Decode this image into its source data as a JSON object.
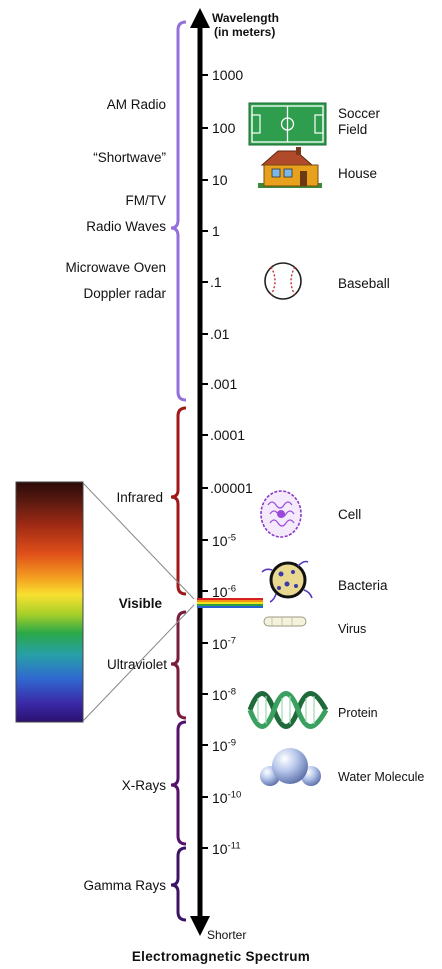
{
  "header": {
    "line1": "Wavelength",
    "line2": "(in meters)"
  },
  "footer": {
    "bottom_label": "Shorter",
    "title": "Electromagnetic Spectrum"
  },
  "regions": {
    "am_radio": "AM Radio",
    "shortwave": "“Shortwave”",
    "fm_tv": "FM/TV",
    "radio_waves": "Radio Waves",
    "microwave": "Microwave Oven",
    "doppler": "Doppler radar",
    "infrared": "Infrared",
    "visible": "Visible",
    "ultraviolet": "Ultraviolet",
    "xrays": "X-Rays",
    "gamma": "Gamma Rays"
  },
  "ticks": {
    "t1000": "1000",
    "t100": "100",
    "t10": "10",
    "t1": "1",
    "t01": ".1",
    "t001": ".01",
    "t0001": ".001",
    "t00001": ".0001",
    "t000001": ".00001",
    "e5": {
      "base": "10",
      "exp": "-5"
    },
    "e6": {
      "base": "10",
      "exp": "-6"
    },
    "e7": {
      "base": "10",
      "exp": "-7"
    },
    "e8": {
      "base": "10",
      "exp": "-8"
    },
    "e9": {
      "base": "10",
      "exp": "-9"
    },
    "e10": {
      "base": "10",
      "exp": "-10"
    },
    "e11": {
      "base": "10",
      "exp": "-11"
    }
  },
  "objects": {
    "soccer_line1": "Soccer",
    "soccer_line2": "Field",
    "house": "House",
    "baseball": "Baseball",
    "cell": "Cell",
    "bacteria": "Bacteria",
    "virus": "Virus",
    "protein": "Protein",
    "water": "Water Molecule"
  },
  "colors": {
    "radio_bracket": "#9370DB",
    "infrared_bracket": "#A01818",
    "ultraviolet_bracket": "#7A1C3C",
    "xray_bracket": "#55126A",
    "gamma_bracket": "#3C1466",
    "soccer_field": "#2E9E4E",
    "house_wall": "#E8A11C"
  }
}
